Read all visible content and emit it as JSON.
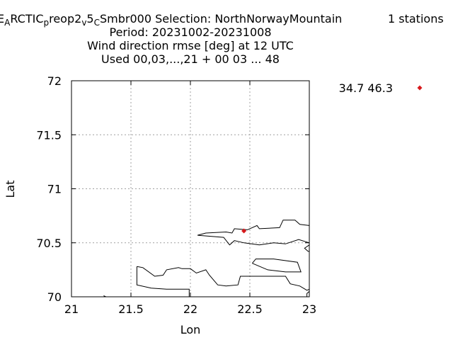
{
  "header": {
    "title_parts": [
      {
        "text": "E",
        "sub": false
      },
      {
        "text": "A",
        "sub": true
      },
      {
        "text": "RCTIC",
        "sub": false
      },
      {
        "text": "p",
        "sub": true
      },
      {
        "text": "reop2",
        "sub": false
      },
      {
        "text": "v",
        "sub": true
      },
      {
        "text": "5",
        "sub": false
      },
      {
        "text": "C",
        "sub": true
      },
      {
        "text": "Smbr000   Selection: NorthNorwayMountain",
        "sub": false
      }
    ],
    "stations": "1 stations",
    "period": "Period: 20231002-20231008",
    "variable": "Wind direction rmse [deg] at  12 UTC",
    "used": "Used  00,03,...,21  + 00 03 ... 48"
  },
  "chart_data": {
    "type": "scatter",
    "xlabel": "Lon",
    "ylabel": "Lat",
    "xlim": [
      21,
      23
    ],
    "ylim": [
      70,
      72
    ],
    "xticks": [
      21,
      21.5,
      22,
      22.5,
      23
    ],
    "xtick_labels": [
      "21",
      "21.5",
      "22",
      "22.5",
      "23"
    ],
    "yticks": [
      70,
      70.5,
      71,
      71.5,
      72
    ],
    "ytick_labels": [
      "70",
      "70.5",
      "71",
      "71.5",
      "72"
    ],
    "grid": true,
    "legend_placement": "top-right, outside plot",
    "legend_label": "34.7 46.3",
    "series": [
      {
        "color": "#d7191c",
        "marker": "diamond",
        "points": [
          {
            "x": 22.45,
            "y": 70.61
          }
        ]
      }
    ],
    "coastlines": [
      [
        [
          22.06,
          70.57
        ],
        [
          22.13,
          70.59
        ],
        [
          22.3,
          70.6
        ],
        [
          22.35,
          70.59
        ],
        [
          22.37,
          70.63
        ],
        [
          22.48,
          70.62
        ],
        [
          22.56,
          70.66
        ],
        [
          22.58,
          70.63
        ],
        [
          22.75,
          70.64
        ],
        [
          22.78,
          70.71
        ],
        [
          22.88,
          70.71
        ],
        [
          22.92,
          70.67
        ],
        [
          23.0,
          70.66
        ]
      ],
      [
        [
          22.06,
          70.57
        ],
        [
          22.28,
          70.55
        ],
        [
          22.33,
          70.48
        ],
        [
          22.37,
          70.52
        ],
        [
          22.45,
          70.5
        ],
        [
          22.58,
          70.48
        ],
        [
          22.7,
          70.5
        ],
        [
          22.8,
          70.49
        ],
        [
          22.91,
          70.53
        ],
        [
          23.0,
          70.5
        ]
      ],
      [
        [
          23.0,
          70.48
        ],
        [
          22.96,
          70.45
        ],
        [
          22.99,
          70.42
        ],
        [
          23.0,
          70.42
        ]
      ],
      [
        [
          22.52,
          70.31
        ],
        [
          22.55,
          70.35
        ],
        [
          22.7,
          70.35
        ],
        [
          22.9,
          70.32
        ],
        [
          22.93,
          70.23
        ],
        [
          22.8,
          70.23
        ],
        [
          22.65,
          70.25
        ],
        [
          22.52,
          70.31
        ]
      ],
      [
        [
          21.55,
          70.28
        ],
        [
          21.6,
          70.27
        ],
        [
          21.7,
          70.19
        ],
        [
          21.77,
          70.2
        ],
        [
          21.8,
          70.25
        ],
        [
          21.9,
          70.27
        ],
        [
          21.93,
          70.26
        ],
        [
          22.0,
          70.26
        ],
        [
          22.05,
          70.22
        ],
        [
          22.13,
          70.25
        ],
        [
          22.16,
          70.2
        ],
        [
          22.23,
          70.11
        ],
        [
          22.3,
          70.1
        ],
        [
          22.4,
          70.11
        ],
        [
          22.42,
          70.19
        ],
        [
          22.8,
          70.19
        ],
        [
          22.84,
          70.12
        ],
        [
          22.92,
          70.1
        ],
        [
          22.98,
          70.06
        ],
        [
          23.0,
          70.07
        ]
      ],
      [
        [
          23.0,
          70.05
        ],
        [
          22.98,
          70.03
        ],
        [
          22.98,
          70.0
        ]
      ],
      [
        [
          21.55,
          70.28
        ],
        [
          21.55,
          70.11
        ],
        [
          21.67,
          70.08
        ],
        [
          21.8,
          70.07
        ],
        [
          21.99,
          70.07
        ],
        [
          21.99,
          70.0
        ]
      ],
      [
        [
          21.27,
          70.01
        ],
        [
          21.29,
          70.0
        ]
      ]
    ]
  }
}
